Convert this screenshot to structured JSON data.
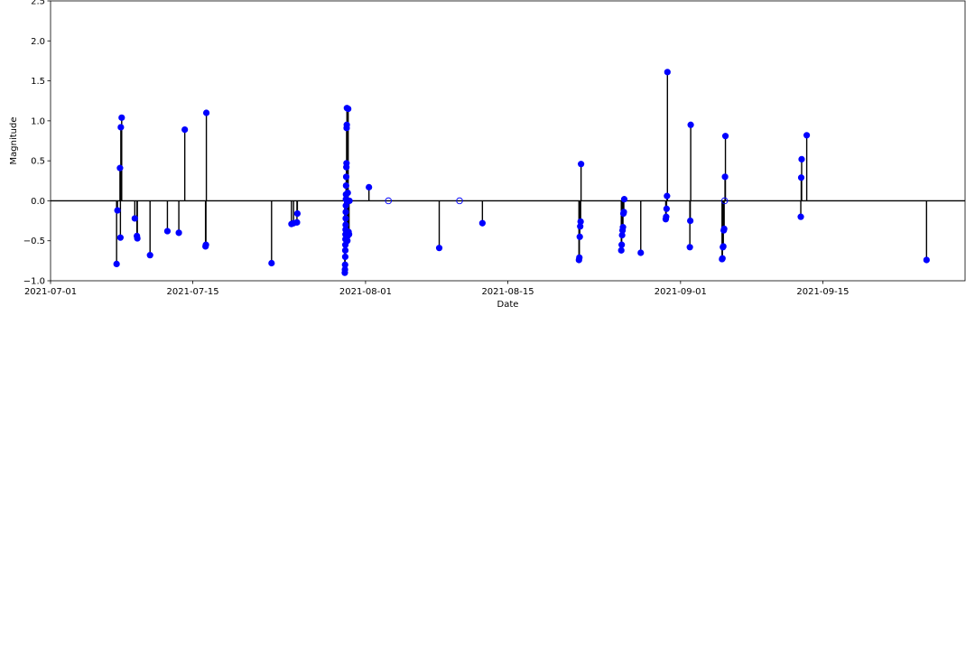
{
  "chart_data": {
    "type": "stem",
    "xlabel": "Date",
    "ylabel": "Magnitude",
    "xlim": [
      "2021-07-01",
      "2021-09-29"
    ],
    "ylim": [
      -1.0,
      2.5
    ],
    "grid": false,
    "baseline": 0.0,
    "colors": {
      "marker": "#0000ff",
      "stem": "#000000",
      "baseline": "#000000",
      "axes": "#000000"
    },
    "x_tick_labels": [
      "2021-07-01",
      "2021-07-15",
      "2021-08-01",
      "2021-08-15",
      "2021-09-01",
      "2021-09-15"
    ],
    "y_tick_labels": [
      "−1.0",
      "−0.5",
      "0.0",
      "0.5",
      "1.0",
      "1.5",
      "2.0",
      "2.5"
    ],
    "x_ticks": [
      "2021-07-01",
      "2021-07-15",
      "2021-08-01",
      "2021-08-15",
      "2021-09-01",
      "2021-09-15"
    ],
    "y_ticks": [
      -1.0,
      -0.5,
      0.0,
      0.5,
      1.0,
      1.5,
      2.0,
      2.5
    ],
    "points": [
      {
        "x": "2021-07-07 12:00",
        "y": -0.79
      },
      {
        "x": "2021-07-07 14:00",
        "y": -0.12
      },
      {
        "x": "2021-07-07 20:00",
        "y": 0.41
      },
      {
        "x": "2021-07-07 21:00",
        "y": -0.46
      },
      {
        "x": "2021-07-07 22:00",
        "y": 0.92
      },
      {
        "x": "2021-07-08 00:00",
        "y": 1.04
      },
      {
        "x": "2021-07-09 07:00",
        "y": -0.22
      },
      {
        "x": "2021-07-09 12:00",
        "y": -0.44
      },
      {
        "x": "2021-07-09 13:00",
        "y": -0.47
      },
      {
        "x": "2021-07-10 19:00",
        "y": -0.68
      },
      {
        "x": "2021-07-12 12:00",
        "y": -0.38
      },
      {
        "x": "2021-07-13 15:00",
        "y": -0.4
      },
      {
        "x": "2021-07-14 05:00",
        "y": 0.89
      },
      {
        "x": "2021-07-16 06:00",
        "y": -0.57
      },
      {
        "x": "2021-07-16 07:00",
        "y": -0.55
      },
      {
        "x": "2021-07-16 08:00",
        "y": 1.1
      },
      {
        "x": "2021-07-22 18:00",
        "y": -0.78
      },
      {
        "x": "2021-07-24 17:00",
        "y": -0.29
      },
      {
        "x": "2021-07-24 22:00",
        "y": -0.28
      },
      {
        "x": "2021-07-25 06:00",
        "y": -0.27
      },
      {
        "x": "2021-07-25 07:00",
        "y": -0.16
      },
      {
        "x": "2021-07-29 23:00",
        "y": -0.9
      },
      {
        "x": "2021-07-29 23:20",
        "y": -0.86
      },
      {
        "x": "2021-07-29 23:40",
        "y": -0.8
      },
      {
        "x": "2021-07-30 00:00",
        "y": -0.7
      },
      {
        "x": "2021-07-30 00:10",
        "y": -0.62
      },
      {
        "x": "2021-07-30 00:20",
        "y": -0.55
      },
      {
        "x": "2021-07-30 00:30",
        "y": -0.48
      },
      {
        "x": "2021-07-30 00:40",
        "y": -0.42
      },
      {
        "x": "2021-07-30 00:50",
        "y": -0.36
      },
      {
        "x": "2021-07-30 01:00",
        "y": -0.3
      },
      {
        "x": "2021-07-30 01:10",
        "y": -0.22
      },
      {
        "x": "2021-07-30 01:20",
        "y": -0.14
      },
      {
        "x": "2021-07-30 01:30",
        "y": -0.06
      },
      {
        "x": "2021-07-30 01:40",
        "y": 0.02
      },
      {
        "x": "2021-07-30 01:50",
        "y": 0.08
      },
      {
        "x": "2021-07-30 02:00",
        "y": 0.19
      },
      {
        "x": "2021-07-30 02:20",
        "y": 0.3
      },
      {
        "x": "2021-07-30 02:40",
        "y": 0.42
      },
      {
        "x": "2021-07-30 03:00",
        "y": 0.47
      },
      {
        "x": "2021-07-30 03:20",
        "y": 0.91
      },
      {
        "x": "2021-07-30 03:40",
        "y": 0.95
      },
      {
        "x": "2021-07-30 04:00",
        "y": 1.16
      },
      {
        "x": "2021-07-30 04:30",
        "y": -0.01
      },
      {
        "x": "2021-07-30 05:00",
        "y": -0.5
      },
      {
        "x": "2021-07-30 05:30",
        "y": -0.44
      },
      {
        "x": "2021-07-30 06:00",
        "y": 0.1
      },
      {
        "x": "2021-07-30 07:00",
        "y": 1.15
      },
      {
        "x": "2021-07-30 08:00",
        "y": -0.39
      },
      {
        "x": "2021-07-30 09:00",
        "y": -0.42
      },
      {
        "x": "2021-07-30 10:00",
        "y": 0.0
      },
      {
        "x": "2021-08-01 08:00",
        "y": 0.17
      },
      {
        "x": "2021-08-03 06:00",
        "y": 0.0,
        "hollow": true
      },
      {
        "x": "2021-08-08 06:00",
        "y": -0.59
      },
      {
        "x": "2021-08-10 06:00",
        "y": 0.0,
        "hollow": true
      },
      {
        "x": "2021-08-12 12:00",
        "y": -0.28
      },
      {
        "x": "2021-08-22 00:00",
        "y": -0.74
      },
      {
        "x": "2021-08-22 01:00",
        "y": -0.71
      },
      {
        "x": "2021-08-22 02:00",
        "y": -0.45
      },
      {
        "x": "2021-08-22 03:00",
        "y": -0.32
      },
      {
        "x": "2021-08-22 04:00",
        "y": -0.26
      },
      {
        "x": "2021-08-22 05:00",
        "y": 0.46
      },
      {
        "x": "2021-08-26 04:00",
        "y": -0.62
      },
      {
        "x": "2021-08-26 05:00",
        "y": -0.55
      },
      {
        "x": "2021-08-26 06:00",
        "y": -0.43
      },
      {
        "x": "2021-08-26 07:00",
        "y": -0.37
      },
      {
        "x": "2021-08-26 08:00",
        "y": -0.33
      },
      {
        "x": "2021-08-26 09:00",
        "y": -0.16
      },
      {
        "x": "2021-08-26 10:00",
        "y": -0.14
      },
      {
        "x": "2021-08-26 11:00",
        "y": 0.02
      },
      {
        "x": "2021-08-28 02:00",
        "y": -0.65
      },
      {
        "x": "2021-08-30 13:00",
        "y": -0.23
      },
      {
        "x": "2021-08-30 14:00",
        "y": -0.2
      },
      {
        "x": "2021-08-30 15:00",
        "y": -0.1
      },
      {
        "x": "2021-08-30 16:00",
        "y": 0.06
      },
      {
        "x": "2021-08-30 17:00",
        "y": 1.61
      },
      {
        "x": "2021-09-01 22:00",
        "y": -0.58
      },
      {
        "x": "2021-09-01 23:00",
        "y": -0.25
      },
      {
        "x": "2021-09-02 00:00",
        "y": 0.95
      },
      {
        "x": "2021-09-05 02:00",
        "y": -0.73
      },
      {
        "x": "2021-09-05 03:00",
        "y": -0.72
      },
      {
        "x": "2021-09-05 04:00",
        "y": -0.58
      },
      {
        "x": "2021-09-05 05:00",
        "y": -0.57
      },
      {
        "x": "2021-09-05 06:00",
        "y": -0.37
      },
      {
        "x": "2021-09-05 07:00",
        "y": -0.35
      },
      {
        "x": "2021-09-05 08:00",
        "y": 0.0,
        "hollow": true
      },
      {
        "x": "2021-09-05 09:00",
        "y": 0.3
      },
      {
        "x": "2021-09-05 10:00",
        "y": 0.81
      },
      {
        "x": "2021-09-12 20:00",
        "y": -0.2
      },
      {
        "x": "2021-09-12 21:00",
        "y": 0.29
      },
      {
        "x": "2021-09-12 22:00",
        "y": 0.52
      },
      {
        "x": "2021-09-13 10:00",
        "y": 0.82
      },
      {
        "x": "2021-09-25 05:00",
        "y": -0.74
      }
    ]
  }
}
